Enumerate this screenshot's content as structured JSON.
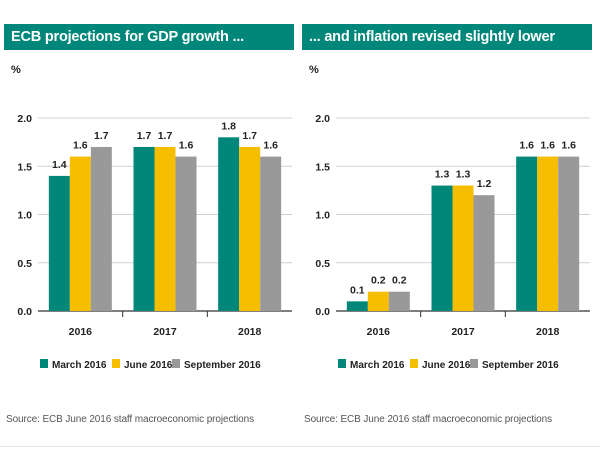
{
  "colors": {
    "header_bg": "#00877a",
    "march": "#00877a",
    "june": "#f5be00",
    "september": "#999999",
    "grid": "#d0d0d0",
    "axis": "#333333"
  },
  "chart_data": [
    {
      "type": "bar",
      "title": "ECB projections for GDP  growth ...",
      "ylabel": "%",
      "xlabel": "",
      "ylim": [
        0,
        2.0
      ],
      "yticks": [
        "0.0",
        "0.5",
        "1.0",
        "1.5",
        "2.0"
      ],
      "ytick_values": [
        0,
        0.5,
        1.0,
        1.5,
        2.0
      ],
      "grid": true,
      "legend_position": "bottom",
      "categories": [
        "2016",
        "2017",
        "2018"
      ],
      "series": [
        {
          "name": "March 2016",
          "values": [
            1.4,
            1.7,
            1.8
          ],
          "labels": [
            "1.4",
            "1.7",
            "1.8"
          ]
        },
        {
          "name": "June 2016",
          "values": [
            1.6,
            1.7,
            1.7
          ],
          "labels": [
            "1.6",
            "1.7",
            "1.7"
          ]
        },
        {
          "name": "September 2016",
          "values": [
            1.7,
            1.6,
            1.6
          ],
          "labels": [
            "1.7",
            "1.6",
            "1.6"
          ]
        }
      ],
      "source": "Source: ECB June 2016 staff macroeconomic projections"
    },
    {
      "type": "bar",
      "title": "... and inflation revised slightly lower",
      "ylabel": "%",
      "xlabel": "",
      "ylim": [
        0,
        2.0
      ],
      "yticks": [
        "0.0",
        "0.5",
        "1.0",
        "1.5",
        "2.0"
      ],
      "ytick_values": [
        0,
        0.5,
        1.0,
        1.5,
        2.0
      ],
      "grid": true,
      "legend_position": "bottom",
      "categories": [
        "2016",
        "2017",
        "2018"
      ],
      "series": [
        {
          "name": "March 2016",
          "values": [
            0.1,
            1.3,
            1.6
          ],
          "labels": [
            "0.1",
            "1.3",
            "1.6"
          ]
        },
        {
          "name": "June 2016",
          "values": [
            0.2,
            1.3,
            1.6
          ],
          "labels": [
            "0.2",
            "1.3",
            "1.6"
          ]
        },
        {
          "name": "September 2016",
          "values": [
            0.2,
            1.2,
            1.6
          ],
          "labels": [
            "0.2",
            "1.2",
            "1.6"
          ]
        }
      ],
      "source": "Source: ECB June 2016 staff macroeconomic projections"
    }
  ]
}
